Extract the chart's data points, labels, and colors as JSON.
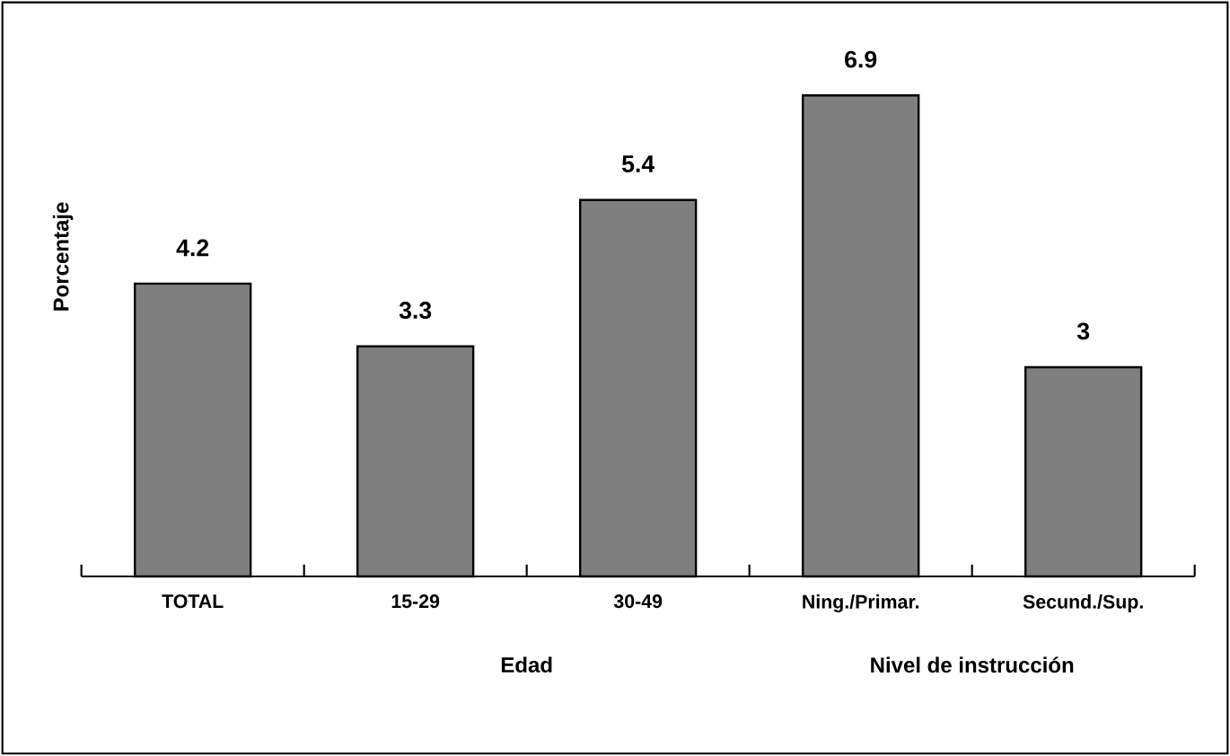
{
  "chart_data": {
    "type": "bar",
    "ylabel": "Porcentaje",
    "categories": [
      "TOTAL",
      "15-29",
      "30-49",
      "Ning./Primar.",
      "Secund./Sup."
    ],
    "values": [
      4.2,
      3.3,
      5.4,
      6.9,
      3
    ],
    "color": "#7f7f7f",
    "data_labels": true,
    "annotations": [
      "Edad",
      "Nivel de instrucción"
    ]
  }
}
